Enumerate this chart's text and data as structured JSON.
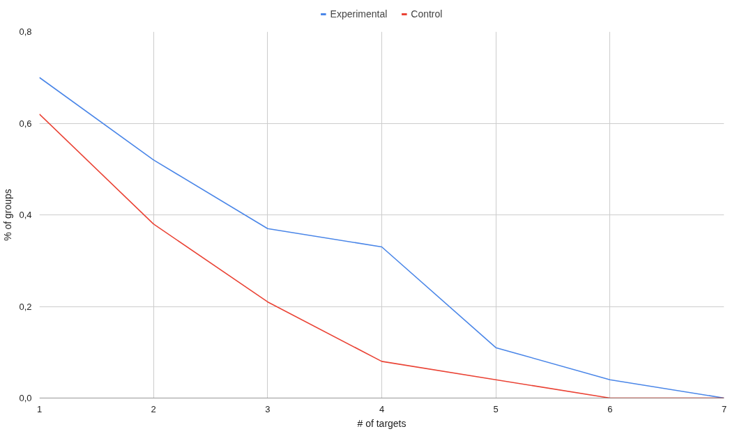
{
  "chart_data": {
    "type": "line",
    "xlabel": "# of targets",
    "ylabel": "% of groups",
    "x": [
      1,
      2,
      3,
      4,
      5,
      6,
      7
    ],
    "series": [
      {
        "name": "Experimental",
        "color": "#4a86e8",
        "values": [
          0.7,
          0.52,
          0.37,
          0.33,
          0.11,
          0.04,
          0
        ]
      },
      {
        "name": "Control",
        "color": "#ea4335",
        "values": [
          0.62,
          0.38,
          0.21,
          0.08,
          0.04,
          0,
          0
        ]
      }
    ],
    "xlim": [
      1,
      7
    ],
    "xticks": [
      1,
      2,
      3,
      4,
      5,
      6,
      7
    ],
    "ylim": [
      0,
      0.8
    ],
    "yticks": [
      {
        "value": 0,
        "label": "0,0"
      },
      {
        "value": 0.2,
        "label": "0,2"
      },
      {
        "value": 0.4,
        "label": "0,4"
      },
      {
        "value": 0.6,
        "label": "0,6"
      },
      {
        "value": 0.8,
        "label": "0,8"
      }
    ],
    "grid": true,
    "legend": "top",
    "marker": "none",
    "line_style": "solid"
  }
}
